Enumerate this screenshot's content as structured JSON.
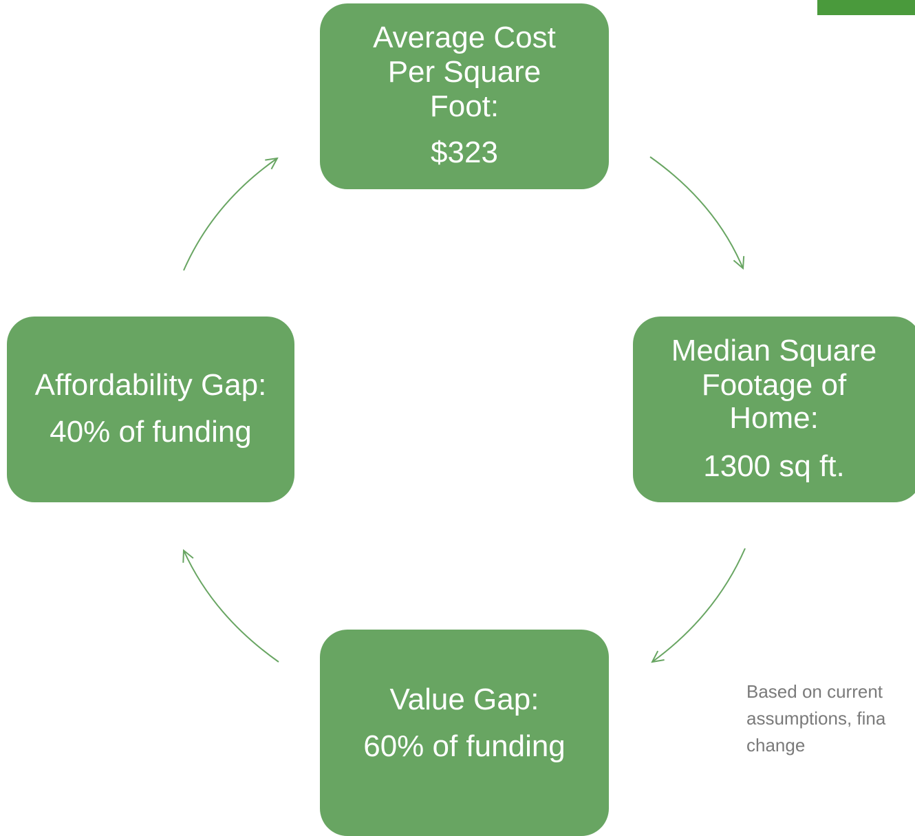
{
  "nodes": [
    {
      "label_lines": [
        "Average Cost",
        "Per Square",
        "Foot:"
      ],
      "value": "$323"
    },
    {
      "label_lines": [
        "Median Square",
        "Footage of",
        "Home:"
      ],
      "value": "1300 sq ft."
    },
    {
      "label_lines": [
        "Value Gap:"
      ],
      "value": "60% of funding"
    },
    {
      "label_lines": [
        "Affordability Gap:"
      ],
      "value": "40% of funding"
    }
  ],
  "note": {
    "lines": [
      "Based on current",
      "assumptions, fina",
      "change"
    ]
  }
}
